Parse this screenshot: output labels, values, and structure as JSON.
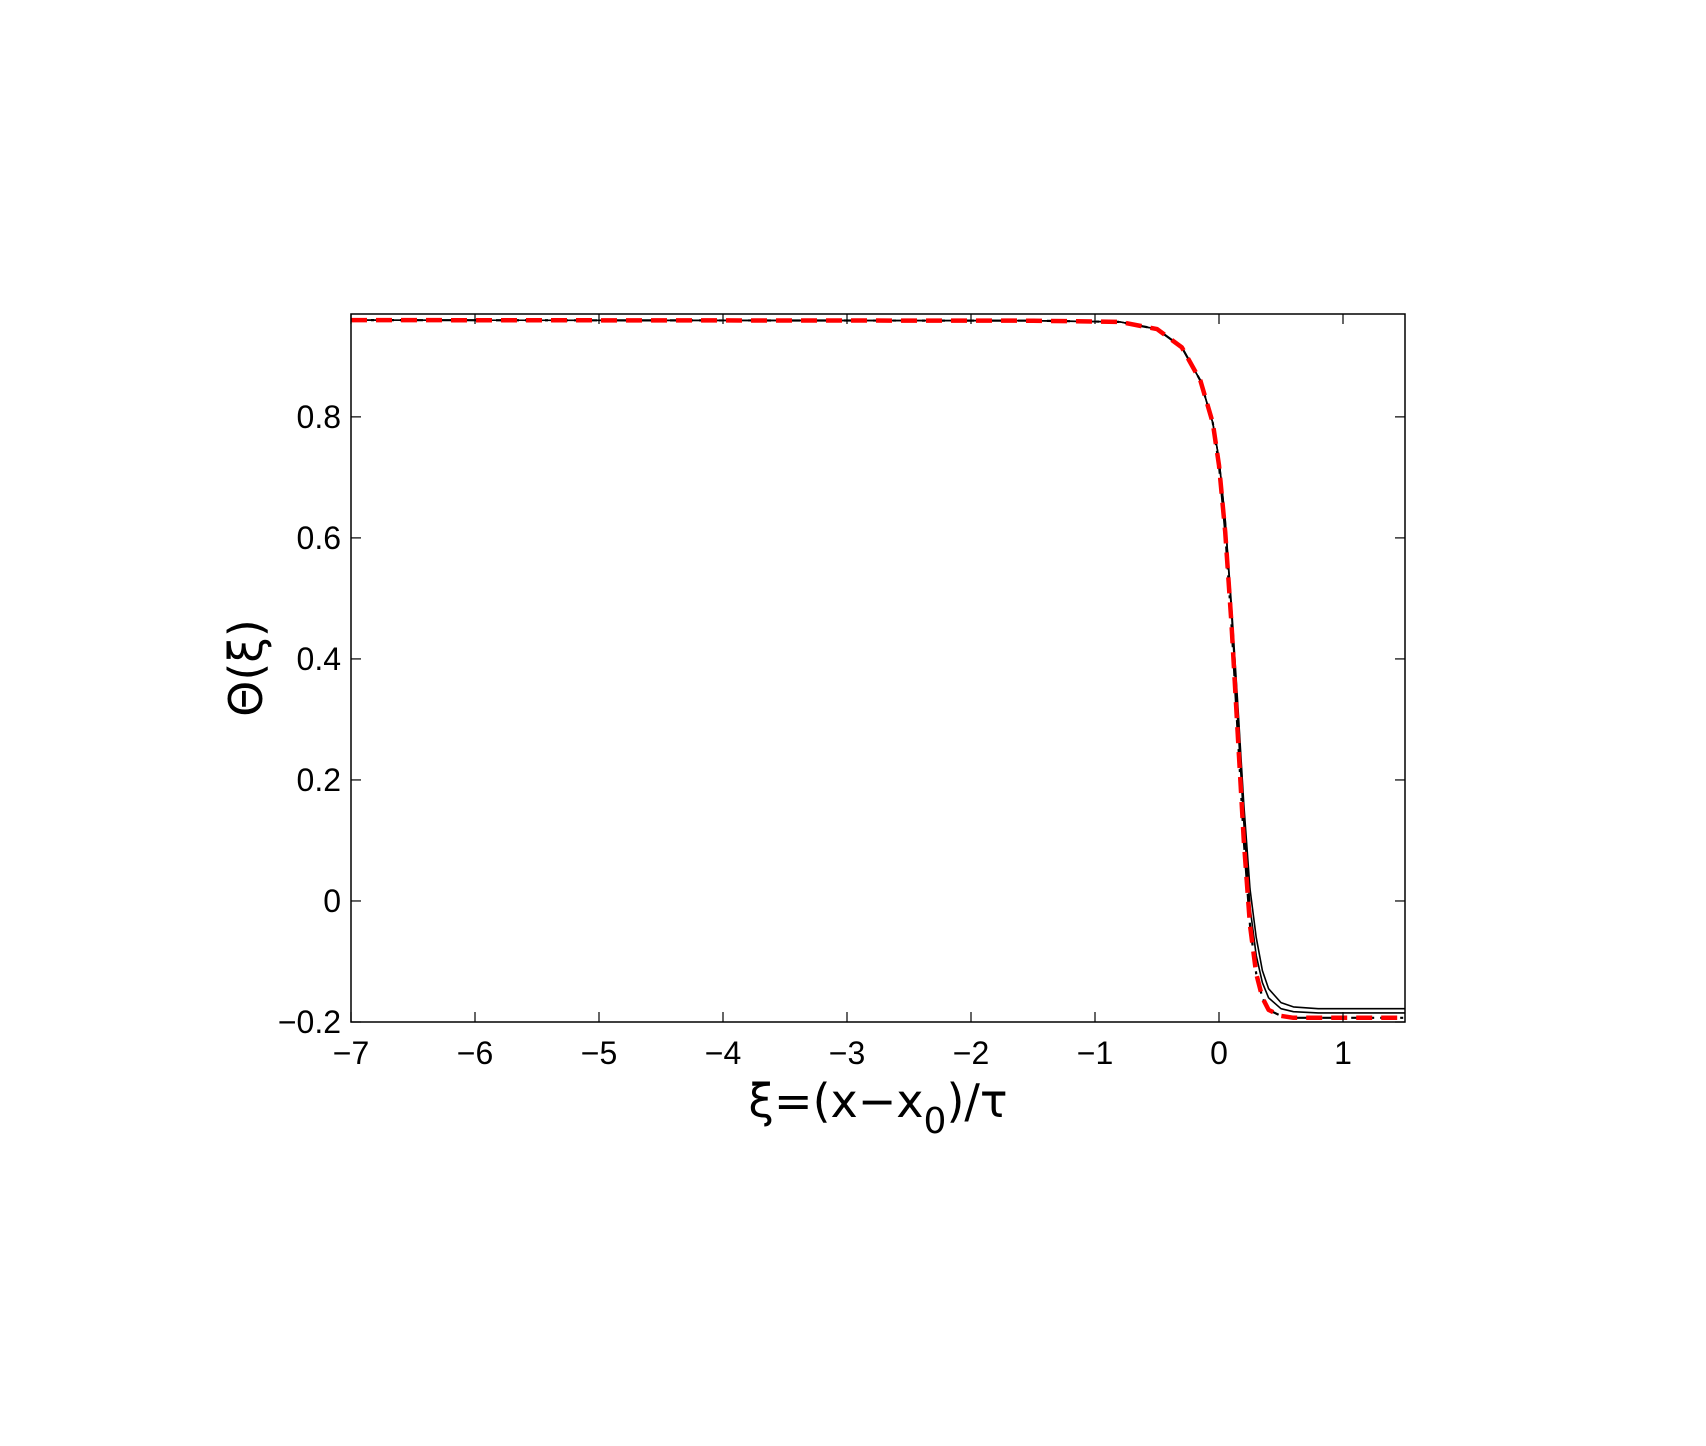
{
  "chart_data": {
    "type": "line",
    "title": "",
    "xlabel": "ξ=(x−x₀)/τ",
    "xlabel_parts": {
      "pre": "ξ=(x−x",
      "sub": "0",
      "post": ")/τ"
    },
    "ylabel": "Θ(ξ)",
    "xlim": [
      -7,
      1.5
    ],
    "ylim": [
      -0.2,
      0.97
    ],
    "xticks": [
      -7,
      -6,
      -5,
      -4,
      -3,
      -2,
      -1,
      0,
      1
    ],
    "xtick_labels": [
      "−7",
      "−6",
      "−5",
      "−4",
      "−3",
      "−2",
      "−1",
      "0",
      "1"
    ],
    "yticks": [
      -0.2,
      0,
      0.2,
      0.4,
      0.6,
      0.8
    ],
    "ytick_labels": [
      "−0.2",
      "0",
      "0.2",
      "0.4",
      "0.6",
      "0.8"
    ],
    "grid": false,
    "box": true,
    "colors": {
      "curves": "#000000",
      "fit": "#ff0000",
      "axes": "#000000"
    },
    "series": [
      {
        "style": "solid-thin",
        "x": [
          -7,
          -1.5,
          -0.8,
          -0.5,
          -0.3,
          -0.15,
          -0.05,
          0.0,
          0.05,
          0.1,
          0.15,
          0.2,
          0.25,
          0.3,
          0.35,
          0.4,
          0.5,
          0.6,
          0.8,
          1.0,
          1.5
        ],
        "y": [
          0.96,
          0.959,
          0.957,
          0.945,
          0.915,
          0.86,
          0.79,
          0.73,
          0.63,
          0.48,
          0.3,
          0.13,
          -0.01,
          -0.09,
          -0.135,
          -0.16,
          -0.178,
          -0.183,
          -0.185,
          -0.185,
          -0.185
        ]
      },
      {
        "style": "solid-thin",
        "x": [
          -7,
          -1.5,
          -0.8,
          -0.5,
          -0.3,
          -0.15,
          -0.05,
          0.0,
          0.05,
          0.1,
          0.15,
          0.2,
          0.25,
          0.3,
          0.35,
          0.4,
          0.5,
          0.6,
          0.8,
          1.0,
          1.5
        ],
        "y": [
          0.96,
          0.959,
          0.957,
          0.945,
          0.915,
          0.86,
          0.79,
          0.73,
          0.63,
          0.49,
          0.33,
          0.16,
          0.02,
          -0.06,
          -0.115,
          -0.145,
          -0.168,
          -0.175,
          -0.178,
          -0.178,
          -0.178
        ]
      },
      {
        "style": "dash-dot",
        "x": [
          -7,
          -1.5,
          -0.8,
          -0.5,
          -0.3,
          -0.15,
          -0.05,
          0.0,
          0.05,
          0.1,
          0.15,
          0.2,
          0.25,
          0.3,
          0.35,
          0.4,
          0.5,
          0.6,
          0.8,
          1.0,
          1.5
        ],
        "y": [
          0.96,
          0.959,
          0.957,
          0.945,
          0.915,
          0.86,
          0.79,
          0.72,
          0.61,
          0.46,
          0.28,
          0.1,
          -0.04,
          -0.12,
          -0.16,
          -0.18,
          -0.19,
          -0.193,
          -0.193,
          -0.193,
          -0.193
        ]
      },
      {
        "style": "dashed-red",
        "x": [
          -7,
          -1.5,
          -0.8,
          -0.5,
          -0.3,
          -0.15,
          -0.05,
          0.0,
          0.05,
          0.1,
          0.15,
          0.2,
          0.25,
          0.3,
          0.35,
          0.4,
          0.5,
          0.6,
          0.8,
          1.0,
          1.5
        ],
        "y": [
          0.96,
          0.959,
          0.957,
          0.945,
          0.915,
          0.86,
          0.79,
          0.72,
          0.61,
          0.46,
          0.28,
          0.1,
          -0.04,
          -0.12,
          -0.16,
          -0.18,
          -0.19,
          -0.193,
          -0.193,
          -0.193,
          -0.193
        ]
      }
    ]
  }
}
